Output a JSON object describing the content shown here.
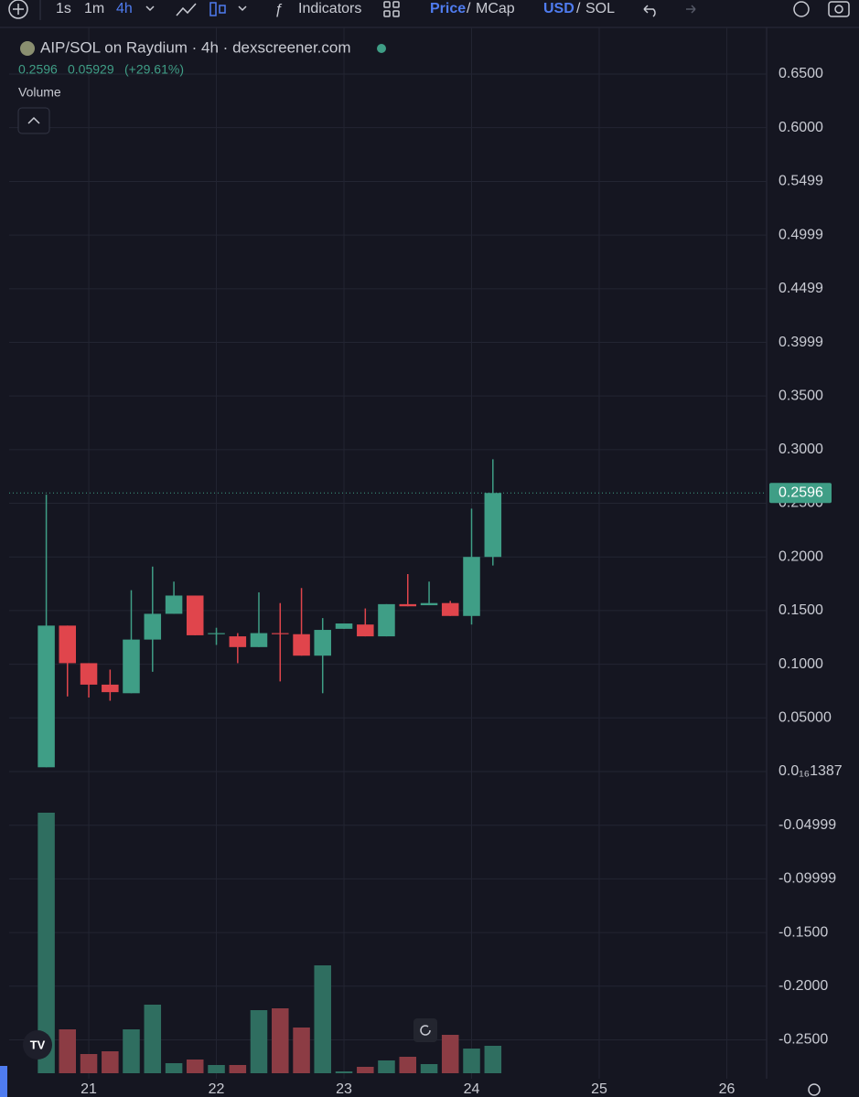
{
  "toolbar": {
    "intervals": [
      "1s",
      "1m",
      "4h"
    ],
    "indicators": "Indicators",
    "price": "Price",
    "price_sep": "/",
    "mcap": "MCap",
    "usd": "USD",
    "usd_sep": "/",
    "sol": "SOL"
  },
  "chart_data": {
    "type": "candlestick",
    "title": "AIP/SOL on Raydium · 4h · dexscreener.com",
    "change": 0.05929,
    "change_pct": {
      "value": 29.61,
      "label": "(+29.61%)"
    },
    "volume_label": "Volume",
    "up_color": "#3f9e86",
    "down_color": "#e0454c",
    "volume_up_color": "#2f6e60",
    "volume_down_color": "#8c3c44",
    "x": [
      20.667,
      20.833,
      21,
      21.167,
      21.333,
      21.5,
      21.667,
      21.833,
      22,
      22.167,
      22.333,
      22.5,
      22.667,
      22.833,
      23,
      23.167,
      23.333,
      23.5,
      23.667,
      23.833,
      24,
      24.167
    ],
    "open": [
      0.004,
      0.136,
      0.101,
      0.081,
      0.073,
      0.123,
      0.147,
      0.164,
      0.128,
      0.126,
      0.116,
      0.129,
      0.128,
      0.108,
      0.133,
      0.137,
      0.126,
      0.156,
      0.155,
      0.157,
      0.145,
      0.2
    ],
    "high": [
      0.258,
      0.136,
      0.101,
      0.095,
      0.169,
      0.191,
      0.177,
      0.164,
      0.134,
      0.129,
      0.167,
      0.157,
      0.171,
      0.143,
      0.138,
      0.152,
      0.156,
      0.184,
      0.177,
      0.159,
      0.245,
      0.291
    ],
    "low": [
      0.004,
      0.07,
      0.069,
      0.066,
      0.073,
      0.093,
      0.147,
      0.127,
      0.118,
      0.101,
      0.116,
      0.084,
      0.108,
      0.073,
      0.133,
      0.126,
      0.126,
      0.154,
      0.155,
      0.145,
      0.137,
      0.192
    ],
    "close": [
      0.136,
      0.101,
      0.081,
      0.074,
      0.123,
      0.147,
      0.164,
      0.127,
      0.129,
      0.116,
      0.129,
      0.128,
      0.108,
      0.132,
      0.138,
      0.126,
      0.156,
      0.154,
      0.157,
      0.145,
      0.2,
      0.2596
    ],
    "volume": [
      285,
      48,
      21,
      24,
      48,
      75,
      11,
      15,
      9,
      9,
      69,
      71,
      50,
      118,
      2,
      7,
      14,
      18,
      10,
      42,
      27,
      30
    ],
    "volume_lim": [
      0,
      300
    ],
    "xlim": [
      20.376,
      26.312
    ],
    "xticks": [
      21,
      22,
      23,
      24,
      25,
      26
    ],
    "ylim": [
      -0.2811,
      0.6934
    ],
    "yticks": [
      {
        "value": 0.65,
        "label": "0.6500"
      },
      {
        "value": 0.6,
        "label": "0.6000"
      },
      0.5499,
      0.4999,
      0.4499,
      0.3999,
      {
        "value": 0.35,
        "label": "0.3500"
      },
      {
        "value": 0.3,
        "label": "0.3000"
      },
      {
        "value": 0.25,
        "label": "0.2500"
      },
      {
        "value": 0.2,
        "label": "0.2000"
      },
      {
        "value": 0.15,
        "label": "0.1500"
      },
      {
        "value": 0.1,
        "label": "0.1000"
      },
      {
        "value": 0.05,
        "label": "0.05000"
      },
      {
        "value": 0,
        "label": "0.0₁₆1387"
      },
      -0.04999,
      -0.09999,
      {
        "value": -0.15,
        "label": "-0.1500"
      },
      {
        "value": -0.2,
        "label": "-0.2000"
      },
      {
        "value": -0.25,
        "label": "-0.2500"
      }
    ],
    "grid": true
  }
}
